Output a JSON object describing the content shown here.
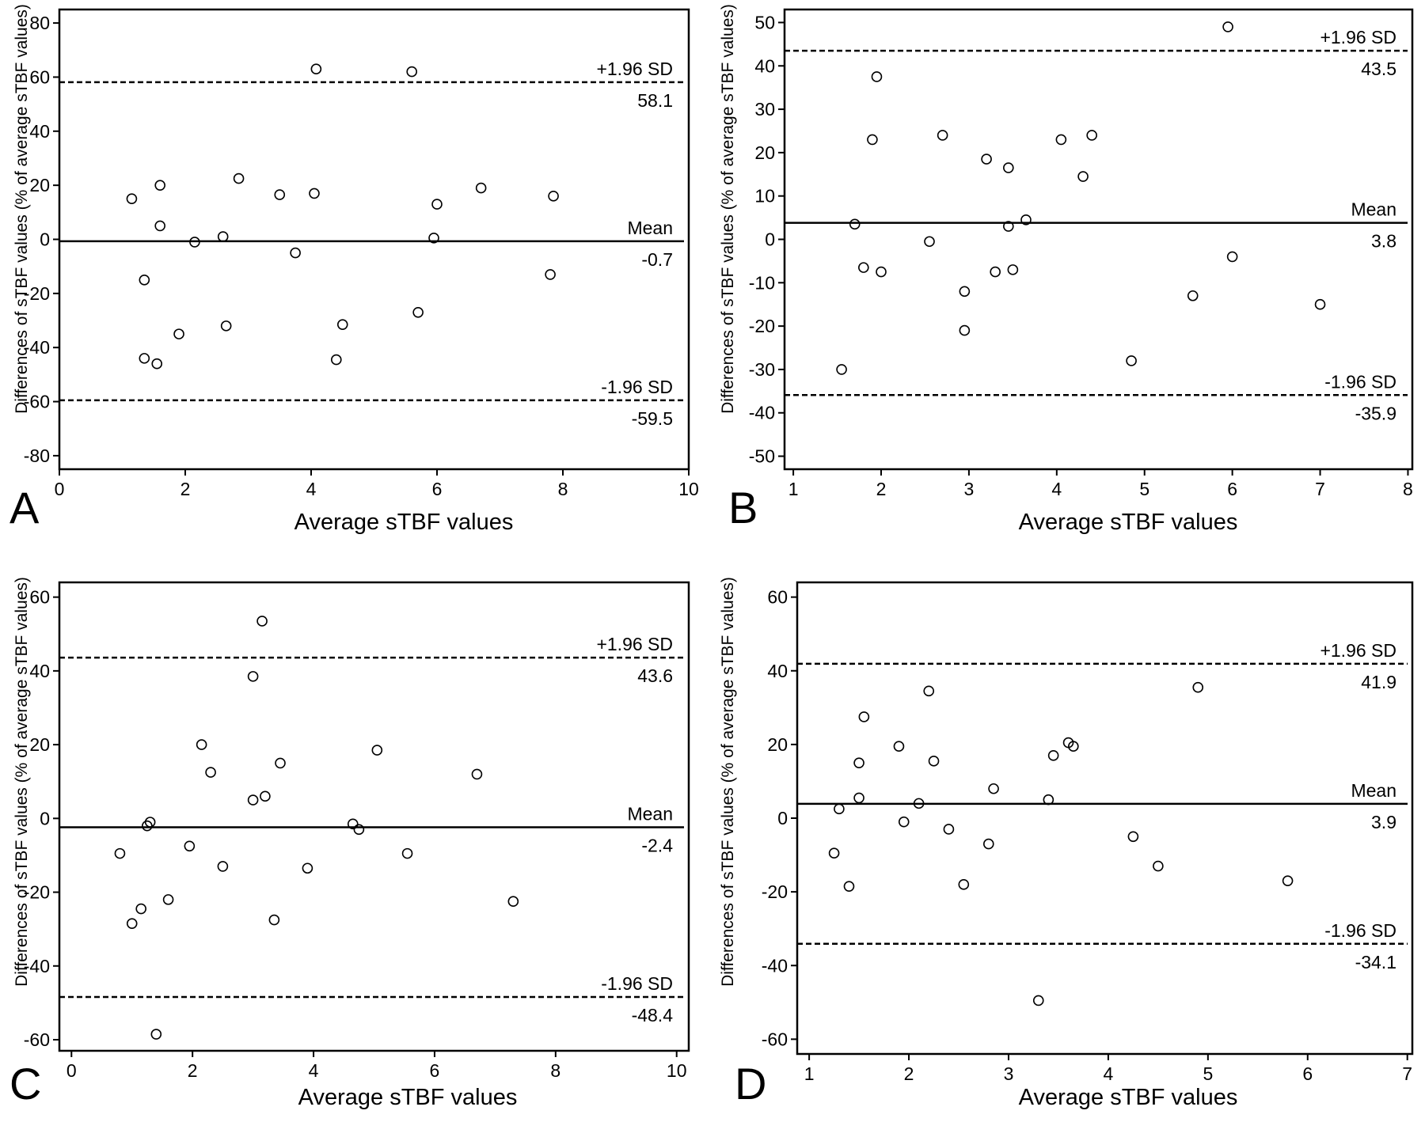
{
  "chart_data": [
    {
      "type": "scatter",
      "panel_label": "A",
      "xlabel": "Average sTBF values",
      "ylabel": "Differences of sTBF values (% of average sTBF values)",
      "xlim": [
        0,
        10
      ],
      "ylim": [
        -85,
        85
      ],
      "xticks": [
        0,
        2,
        4,
        6,
        8,
        10
      ],
      "yticks": [
        -80,
        -60,
        -40,
        -20,
        0,
        20,
        40,
        60,
        80
      ],
      "grid": false,
      "reference_lines": [
        {
          "label": "+1.96 SD",
          "value": 58.1,
          "value_text": "58.1",
          "style": "dashed"
        },
        {
          "label": "Mean",
          "value": -0.7,
          "value_text": "-0.7",
          "style": "solid"
        },
        {
          "label": "-1.96 SD",
          "value": -59.5,
          "value_text": "-59.5",
          "style": "dashed"
        }
      ],
      "points": [
        [
          1.15,
          15
        ],
        [
          1.6,
          20
        ],
        [
          1.6,
          5
        ],
        [
          1.35,
          -15
        ],
        [
          1.35,
          -44
        ],
        [
          1.55,
          -46
        ],
        [
          1.9,
          -35
        ],
        [
          2.15,
          -1
        ],
        [
          2.6,
          1
        ],
        [
          2.65,
          -32
        ],
        [
          2.85,
          22.5
        ],
        [
          3.5,
          16.5
        ],
        [
          3.75,
          -5
        ],
        [
          4.05,
          17
        ],
        [
          4.08,
          63
        ],
        [
          4.4,
          -44.5
        ],
        [
          4.5,
          -31.5
        ],
        [
          5.6,
          62
        ],
        [
          5.7,
          -27
        ],
        [
          5.95,
          0.5
        ],
        [
          6.0,
          13
        ],
        [
          6.7,
          19
        ],
        [
          7.8,
          -13
        ],
        [
          7.85,
          16
        ]
      ]
    },
    {
      "type": "scatter",
      "panel_label": "B",
      "xlabel": "Average sTBF values",
      "ylabel": "Differences of sTBF values (% of average sTBF values)",
      "xlim": [
        0.9,
        8.05
      ],
      "ylim": [
        -53,
        53
      ],
      "xticks": [
        1,
        2,
        3,
        4,
        5,
        6,
        7,
        8
      ],
      "yticks": [
        -50,
        -40,
        -30,
        -20,
        -10,
        0,
        10,
        20,
        30,
        40,
        50
      ],
      "grid": false,
      "reference_lines": [
        {
          "label": "+1.96 SD",
          "value": 43.5,
          "value_text": "43.5",
          "style": "dashed"
        },
        {
          "label": "Mean",
          "value": 3.8,
          "value_text": "3.8",
          "style": "solid"
        },
        {
          "label": "-1.96 SD",
          "value": -35.9,
          "value_text": "-35.9",
          "style": "dashed"
        }
      ],
      "points": [
        [
          1.55,
          -30
        ],
        [
          1.7,
          3.5
        ],
        [
          1.8,
          -6.5
        ],
        [
          1.9,
          23
        ],
        [
          1.95,
          37.5
        ],
        [
          2.0,
          -7.5
        ],
        [
          2.55,
          -0.5
        ],
        [
          2.7,
          24
        ],
        [
          2.95,
          -12
        ],
        [
          2.95,
          -21
        ],
        [
          3.2,
          18.5
        ],
        [
          3.3,
          -7.5
        ],
        [
          3.45,
          16.5
        ],
        [
          3.45,
          3
        ],
        [
          3.5,
          -7
        ],
        [
          3.65,
          4.5
        ],
        [
          4.05,
          23
        ],
        [
          4.3,
          14.5
        ],
        [
          4.4,
          24
        ],
        [
          4.85,
          -28
        ],
        [
          5.55,
          -13
        ],
        [
          5.95,
          49
        ],
        [
          6.0,
          -4
        ],
        [
          7.0,
          -15
        ]
      ]
    },
    {
      "type": "scatter",
      "panel_label": "C",
      "xlabel": "Average sTBF values",
      "ylabel": "Differences of sTBF values (% of average sTBF values)",
      "xlim": [
        -0.2,
        10.2
      ],
      "ylim": [
        -63,
        64
      ],
      "xticks": [
        0,
        2,
        4,
        6,
        8,
        10
      ],
      "yticks": [
        -60,
        -40,
        -20,
        0,
        20,
        40,
        60
      ],
      "grid": false,
      "reference_lines": [
        {
          "label": "+1.96 SD",
          "value": 43.6,
          "value_text": "43.6",
          "style": "dashed"
        },
        {
          "label": "Mean",
          "value": -2.4,
          "value_text": "-2.4",
          "style": "solid"
        },
        {
          "label": "-1.96 SD",
          "value": -48.4,
          "value_text": "-48.4",
          "style": "dashed"
        }
      ],
      "points": [
        [
          0.8,
          -9.5
        ],
        [
          1.0,
          -28.5
        ],
        [
          1.15,
          -24.5
        ],
        [
          1.25,
          -2
        ],
        [
          1.3,
          -1
        ],
        [
          1.4,
          -58.5
        ],
        [
          1.6,
          -22
        ],
        [
          1.95,
          -7.5
        ],
        [
          2.15,
          20
        ],
        [
          2.3,
          12.5
        ],
        [
          2.5,
          -13
        ],
        [
          3.0,
          38.5
        ],
        [
          3.0,
          5
        ],
        [
          3.15,
          53.5
        ],
        [
          3.2,
          6
        ],
        [
          3.35,
          -27.5
        ],
        [
          3.45,
          15
        ],
        [
          3.9,
          -13.5
        ],
        [
          4.65,
          -1.5
        ],
        [
          4.75,
          -3
        ],
        [
          5.05,
          18.5
        ],
        [
          5.55,
          -9.5
        ],
        [
          6.7,
          12
        ],
        [
          7.3,
          -22.5
        ]
      ]
    },
    {
      "type": "scatter",
      "panel_label": "D",
      "xlabel": "Average sTBF values",
      "ylabel": "Differences of sTBF values (% of average sTBF values)",
      "xlim": [
        0.88,
        7.05
      ],
      "ylim": [
        -64,
        64
      ],
      "xticks": [
        1,
        2,
        3,
        4,
        5,
        6,
        7
      ],
      "yticks": [
        -60,
        -40,
        -20,
        0,
        20,
        40,
        60
      ],
      "grid": false,
      "reference_lines": [
        {
          "label": "+1.96 SD",
          "value": 41.9,
          "value_text": "41.9",
          "style": "dashed"
        },
        {
          "label": "Mean",
          "value": 3.9,
          "value_text": "3.9",
          "style": "solid"
        },
        {
          "label": "-1.96 SD",
          "value": -34.1,
          "value_text": "-34.1",
          "style": "dashed"
        }
      ],
      "points": [
        [
          1.25,
          -9.5
        ],
        [
          1.3,
          2.5
        ],
        [
          1.4,
          -18.5
        ],
        [
          1.5,
          15
        ],
        [
          1.5,
          5.5
        ],
        [
          1.55,
          27.5
        ],
        [
          1.9,
          19.5
        ],
        [
          1.95,
          -1
        ],
        [
          2.1,
          4
        ],
        [
          2.2,
          34.5
        ],
        [
          2.25,
          15.5
        ],
        [
          2.4,
          -3
        ],
        [
          2.55,
          -18
        ],
        [
          2.8,
          -7
        ],
        [
          2.85,
          8
        ],
        [
          3.3,
          -49.5
        ],
        [
          3.4,
          5
        ],
        [
          3.45,
          17
        ],
        [
          3.6,
          20.5
        ],
        [
          3.65,
          19.5
        ],
        [
          4.25,
          -5
        ],
        [
          4.5,
          -13
        ],
        [
          4.9,
          35.5
        ],
        [
          5.8,
          -17
        ]
      ]
    }
  ]
}
